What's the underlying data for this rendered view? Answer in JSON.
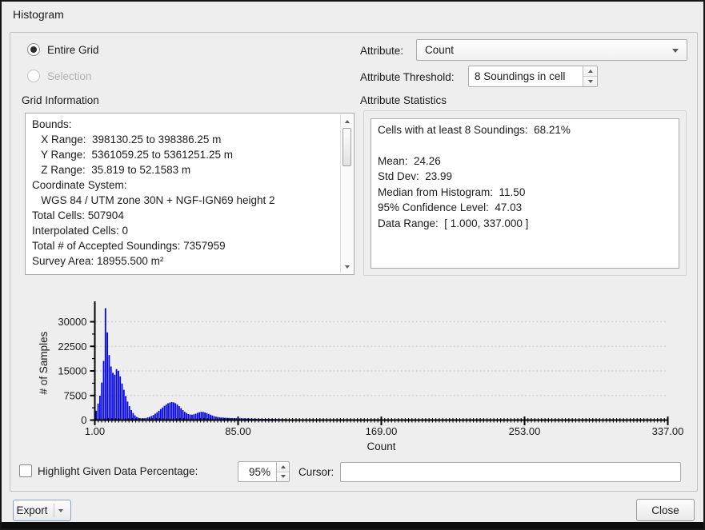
{
  "window": {
    "title": "Histogram"
  },
  "scope": {
    "entire_grid_label": "Entire Grid",
    "selection_label": "Selection",
    "entire_grid_selected": true
  },
  "attribute": {
    "label": "Attribute:",
    "value": "Count"
  },
  "threshold": {
    "label": "Attribute Threshold:",
    "value": "8 Soundings in cell"
  },
  "grid_info": {
    "label": "Grid Information",
    "lines": [
      "Bounds:",
      "   X Range:  398130.25 to 398386.25 m",
      "   Y Range:  5361059.25 to 5361251.25 m",
      "   Z Range:  35.819 to 52.1583 m",
      "Coordinate System:",
      "   WGS 84 / UTM zone 30N + NGF-IGN69 height 2",
      "Total Cells: 507904",
      "Interpolated Cells: 0",
      "Total # of Accepted Soundings: 7357959",
      "Survey Area: 18955.500 m²"
    ]
  },
  "stats": {
    "label": "Attribute Statistics",
    "lines": [
      "Cells with at least 8 Soundings:  68.21%",
      "",
      "Mean:  24.26",
      "Std Dev:  23.99",
      "Median from Histogram:  11.50",
      "95% Confidence Level:  47.03",
      "Data Range:  [ 1.000, 337.000 ]"
    ]
  },
  "highlight": {
    "label": "Highlight Given Data Percentage:",
    "value": "95%",
    "checked": false
  },
  "cursor": {
    "label": "Cursor:",
    "value": ""
  },
  "buttons": {
    "export": "Export",
    "close": "Close"
  },
  "chart_data": {
    "type": "bar",
    "title": "",
    "xlabel": "Count",
    "ylabel": "# of Samples",
    "xlim": [
      1,
      337
    ],
    "ylim": [
      0,
      35000
    ],
    "x_tick_values": [
      1,
      85,
      169,
      253,
      337
    ],
    "x_tick_labels": [
      "1.00",
      "85.00",
      "169.00",
      "253.00",
      "337.00"
    ],
    "y_tick_values": [
      0,
      7500,
      15000,
      22500,
      30000
    ],
    "y_tick_labels": [
      "0",
      "7500",
      "15000",
      "22500",
      "30000"
    ],
    "x_minor_tick_step": 2,
    "grid": "horizontal-dotted",
    "bar_color": "#0404ee",
    "grid_color": "#c9c9c9",
    "bin_start": 1.0,
    "bin_width": 1.08,
    "values": [
      2600,
      4800,
      7200,
      11200,
      17800,
      33900,
      26500,
      19600,
      16100,
      14200,
      13600,
      15300,
      14800,
      13100,
      10900,
      9000,
      7100,
      5400,
      4000,
      2800,
      1900,
      1200,
      700,
      450,
      300,
      250,
      300,
      400,
      550,
      750,
      1000,
      1300,
      1700,
      2100,
      2600,
      3100,
      3600,
      4100,
      4500,
      4900,
      5100,
      5250,
      5150,
      4900,
      4500,
      4000,
      3400,
      2800,
      2300,
      1900,
      1600,
      1450,
      1400,
      1500,
      1700,
      1950,
      2150,
      2300,
      2250,
      2100,
      1900,
      1650,
      1400,
      1150,
      950,
      800,
      700,
      620,
      560,
      510,
      470,
      440,
      410,
      380,
      360,
      340,
      320,
      300,
      290,
      280,
      270,
      255,
      240,
      225,
      210,
      195,
      180,
      165,
      150,
      140,
      130,
      120,
      110,
      100,
      95,
      90,
      85,
      80,
      75,
      70,
      65,
      60,
      55,
      50,
      46,
      42,
      38,
      35,
      32,
      30,
      28,
      26,
      24,
      22,
      20,
      18,
      16,
      15,
      14,
      13
    ]
  }
}
